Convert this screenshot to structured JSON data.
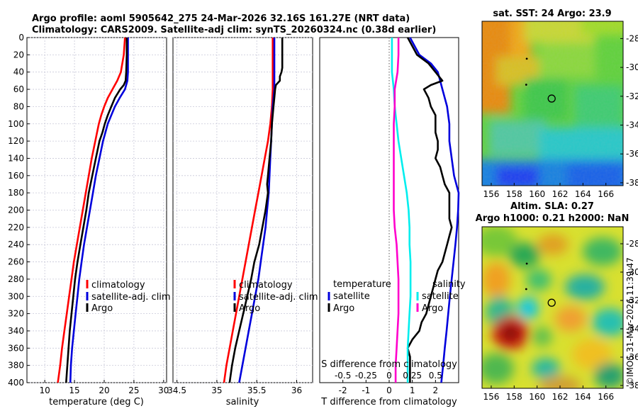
{
  "chart_data": [
    {
      "type": "line",
      "panel": "temperature",
      "title_line1": "Argo profile: aoml 5905642_275 24-Mar-2026 32.16S 161.27E (NRT data)",
      "title_line2": "Climatology: CARS2009. Satellite-adj clim: synTS_20260324.nc (0.38d earlier)",
      "xlabel": "temperature (deg C)",
      "xlim": [
        7,
        30.5
      ],
      "xticks": [
        10,
        15,
        20,
        25,
        30
      ],
      "ylim": [
        0,
        400
      ],
      "yticks": [
        0,
        20,
        40,
        60,
        80,
        100,
        120,
        140,
        160,
        180,
        200,
        220,
        240,
        260,
        280,
        300,
        320,
        340,
        360,
        380,
        400
      ],
      "legend": [
        "climatology",
        "satellite-adj. clim",
        "Argo"
      ],
      "series": [
        {
          "name": "climatology",
          "color": "#ff0000",
          "depth": [
            0,
            20,
            40,
            50,
            60,
            70,
            80,
            90,
            100,
            110,
            120,
            140,
            160,
            180,
            200,
            220,
            240,
            260,
            280,
            300,
            320,
            340,
            360,
            380,
            400
          ],
          "values": [
            23.5,
            23.3,
            22.8,
            22.2,
            21.4,
            20.6,
            20.0,
            19.5,
            19.1,
            18.8,
            18.5,
            17.9,
            17.4,
            16.9,
            16.4,
            15.9,
            15.4,
            14.9,
            14.5,
            14.1,
            13.7,
            13.3,
            12.9,
            12.6,
            12.2
          ]
        },
        {
          "name": "satellite-adj. clim",
          "color": "#0000dd",
          "depth": [
            0,
            20,
            40,
            50,
            60,
            70,
            80,
            90,
            100,
            110,
            120,
            140,
            160,
            180,
            200,
            220,
            240,
            260,
            280,
            300,
            320,
            340,
            360,
            380,
            400
          ],
          "values": [
            24.0,
            24.0,
            24.0,
            23.9,
            23.5,
            22.6,
            21.8,
            21.2,
            20.6,
            20.2,
            19.8,
            19.2,
            18.6,
            18.1,
            17.6,
            17.1,
            16.6,
            16.2,
            15.8,
            15.5,
            15.2,
            14.9,
            14.6,
            14.4,
            14.3
          ]
        },
        {
          "name": "Argo",
          "color": "#000000",
          "depth": [
            0,
            20,
            40,
            50,
            55,
            60,
            70,
            80,
            90,
            100,
            110,
            120,
            140,
            160,
            180,
            200,
            220,
            240,
            260,
            280,
            300,
            320,
            340,
            360,
            380,
            400
          ],
          "values": [
            23.8,
            23.8,
            23.7,
            23.6,
            23.3,
            22.7,
            21.8,
            21.2,
            20.6,
            20.1,
            19.7,
            19.2,
            18.6,
            18.0,
            17.4,
            17.0,
            16.5,
            16.0,
            15.5,
            15.1,
            14.8,
            14.5,
            14.2,
            14.0,
            13.8,
            13.6
          ]
        }
      ]
    },
    {
      "type": "line",
      "panel": "salinity",
      "xlabel": "salinity",
      "xlim": [
        34.45,
        36.2
      ],
      "xticks": [
        34.5,
        35,
        35.5,
        36
      ],
      "xticklabels": [
        "34.5",
        "35",
        "35.5",
        "36"
      ],
      "ylim": [
        0,
        400
      ],
      "legend": [
        "climatology",
        "satellite-adj. clim",
        "Argo"
      ],
      "series": [
        {
          "name": "climatology",
          "color": "#ff0000",
          "depth": [
            0,
            20,
            40,
            60,
            80,
            100,
            120,
            140,
            160,
            180,
            200,
            220,
            240,
            260,
            280,
            300,
            320,
            340,
            360,
            380,
            400
          ],
          "values": [
            35.7,
            35.7,
            35.7,
            35.7,
            35.69,
            35.67,
            35.64,
            35.6,
            35.56,
            35.52,
            35.48,
            35.44,
            35.4,
            35.36,
            35.32,
            35.28,
            35.24,
            35.2,
            35.16,
            35.12,
            35.09
          ]
        },
        {
          "name": "satellite-adj. clim",
          "color": "#0000dd",
          "depth": [
            0,
            20,
            40,
            60,
            80,
            100,
            120,
            140,
            160,
            180,
            200,
            220,
            240,
            260,
            280,
            300,
            320,
            340,
            360,
            380,
            400
          ],
          "values": [
            35.72,
            35.72,
            35.72,
            35.72,
            35.7,
            35.69,
            35.68,
            35.67,
            35.66,
            35.65,
            35.63,
            35.61,
            35.58,
            35.55,
            35.52,
            35.48,
            35.44,
            35.4,
            35.36,
            35.32,
            35.28
          ]
        },
        {
          "name": "Argo",
          "color": "#000000",
          "depth": [
            0,
            5,
            20,
            35,
            40,
            45,
            50,
            55,
            60,
            70,
            80,
            90,
            100,
            120,
            140,
            160,
            170,
            180,
            200,
            220,
            240,
            260,
            280,
            300,
            320,
            340,
            360,
            380,
            400
          ],
          "values": [
            35.82,
            35.82,
            35.82,
            35.82,
            35.81,
            35.79,
            35.79,
            35.74,
            35.73,
            35.72,
            35.71,
            35.7,
            35.69,
            35.68,
            35.66,
            35.64,
            35.63,
            35.64,
            35.61,
            35.57,
            35.53,
            35.47,
            35.43,
            35.38,
            35.33,
            35.28,
            35.23,
            35.19,
            35.16
          ]
        }
      ]
    },
    {
      "type": "line",
      "panel": "difference",
      "xlabel": "T difference from climatology",
      "xlim": [
        -3.0,
        3.0
      ],
      "xticks": [
        -2,
        -1,
        0,
        1,
        2
      ],
      "x2label": "S difference from climatology",
      "x2ticks": [
        "-0.5",
        "-0.25",
        "0",
        "0.25",
        "0.5"
      ],
      "ylim": [
        0,
        400
      ],
      "legend_temperature": {
        "title": "temperature",
        "items": [
          "satellite",
          "Argo"
        ]
      },
      "legend_salinity": {
        "title": "salinity",
        "items": [
          "satellite",
          "Argo"
        ]
      },
      "series": [
        {
          "name": "temperature satellite",
          "color": "#0000dd",
          "depth": [
            0,
            20,
            30,
            40,
            50,
            60,
            70,
            80,
            100,
            120,
            140,
            160,
            170,
            180,
            200,
            220,
            240,
            260,
            280,
            300,
            320,
            340,
            360,
            380,
            400
          ],
          "values": [
            0.9,
            1.3,
            1.8,
            2.1,
            2.2,
            2.3,
            2.4,
            2.5,
            2.6,
            2.6,
            2.7,
            2.8,
            2.9,
            3.0,
            2.98,
            2.93,
            2.86,
            2.78,
            2.7,
            2.62,
            2.55,
            2.48,
            2.4,
            2.33,
            2.25
          ]
        },
        {
          "name": "temperature Argo",
          "color": "#000000",
          "depth": [
            0,
            20,
            30,
            40,
            50,
            55,
            60,
            65,
            70,
            80,
            90,
            100,
            110,
            120,
            130,
            140,
            150,
            160,
            170,
            180,
            190,
            200,
            210,
            220,
            230,
            240,
            250,
            260,
            270,
            280,
            290,
            300,
            310,
            320,
            330,
            340,
            350,
            360,
            370,
            380,
            390,
            400
          ],
          "values": [
            0.8,
            1.2,
            1.7,
            2.0,
            2.3,
            1.8,
            1.5,
            1.6,
            1.7,
            1.8,
            2.0,
            2.0,
            2.0,
            2.1,
            2.1,
            2.0,
            2.2,
            2.3,
            2.4,
            2.6,
            2.6,
            2.6,
            2.6,
            2.7,
            2.6,
            2.5,
            2.4,
            2.3,
            2.1,
            2.0,
            1.9,
            1.8,
            1.7,
            1.6,
            1.4,
            1.3,
            1.0,
            0.8,
            0.9,
            0.9,
            0.9,
            0.9
          ]
        },
        {
          "name": "salinity satellite",
          "color": "#00eeee",
          "depth": [
            0,
            20,
            40,
            60,
            80,
            100,
            120,
            140,
            160,
            180,
            200,
            220,
            240,
            260,
            280,
            300,
            320,
            340,
            360,
            380,
            400
          ],
          "values": [
            0.03,
            0.03,
            0.03,
            0.05,
            0.06,
            0.08,
            0.1,
            0.13,
            0.16,
            0.19,
            0.21,
            0.22,
            0.22,
            0.23,
            0.23,
            0.23,
            0.22,
            0.21,
            0.2,
            0.2,
            0.2
          ]
        },
        {
          "name": "salinity Argo",
          "color": "#ff00cc",
          "depth": [
            0,
            20,
            40,
            60,
            80,
            100,
            120,
            140,
            160,
            180,
            200,
            220,
            240,
            260,
            280,
            300,
            320,
            340,
            360,
            380,
            400
          ],
          "values": [
            0.1,
            0.1,
            0.09,
            0.06,
            0.06,
            0.05,
            0.05,
            0.05,
            0.05,
            0.05,
            0.05,
            0.06,
            0.08,
            0.09,
            0.1,
            0.1,
            0.1,
            0.09,
            0.08,
            0.07,
            0.07
          ]
        }
      ]
    },
    {
      "type": "heatmap",
      "panel": "sst-map",
      "title": "sat. SST: 24 Argo: 23.9",
      "xlim": [
        155.2,
        167.5
      ],
      "ylim": [
        -38.2,
        -26.8
      ],
      "xticks": [
        156,
        158,
        160,
        162,
        164,
        166
      ],
      "yticks": [
        -28,
        -30,
        -32,
        -34,
        -36,
        -38
      ],
      "argo_position": [
        161.27,
        -32.16
      ],
      "prior_positions": [
        [
          159.1,
          -29.4
        ],
        [
          159.05,
          -31.2
        ]
      ]
    },
    {
      "type": "heatmap",
      "panel": "sla-map",
      "title_line1": "Altim. SLA: 0.27",
      "title_line2": "Argo h1000: 0.21 h2000: NaN",
      "xlim": [
        155.2,
        167.5
      ],
      "ylim": [
        -38.2,
        -26.8
      ],
      "xticks": [
        156,
        158,
        160,
        162,
        164,
        166
      ],
      "yticks": [
        -28,
        -30,
        -32,
        -34,
        -36,
        -38
      ],
      "argo_position": [
        161.27,
        -32.16
      ],
      "prior_positions": [
        [
          159.1,
          -29.4
        ],
        [
          159.05,
          -31.2
        ]
      ]
    }
  ],
  "footer": {
    "credit": "©IMOS 31-Mar-2026 11:39:47"
  }
}
